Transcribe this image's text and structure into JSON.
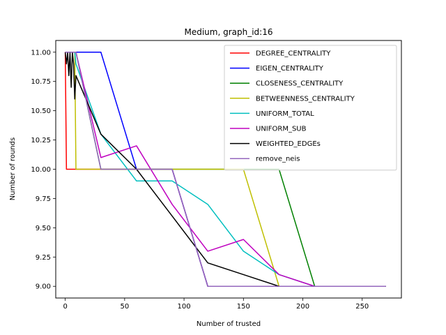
{
  "chart_data": {
    "type": "line",
    "title": "Medium, graph_id:16",
    "xlabel": "Number of trusted",
    "ylabel": "Number of rounds",
    "xlim": [
      -8,
      283
    ],
    "ylim": [
      8.9,
      11.1
    ],
    "xticks": [
      0,
      50,
      100,
      150,
      200,
      250
    ],
    "yticks": [
      9.0,
      9.25,
      9.5,
      9.75,
      10.0,
      10.25,
      10.5,
      10.75,
      11.0
    ],
    "ytick_labels": [
      "9.00",
      "9.25",
      "9.50",
      "9.75",
      "10.00",
      "10.25",
      "10.50",
      "10.75",
      "11.00"
    ],
    "grid": false,
    "legend_position": "upper right",
    "series": [
      {
        "name": "DEGREE_CENTRALITY",
        "color": "#ff0000",
        "x": [
          0,
          1,
          2,
          3,
          4,
          5,
          6,
          7,
          8,
          9,
          30,
          60,
          90,
          120,
          150,
          180,
          210,
          240,
          270
        ],
        "y": [
          11,
          10,
          10,
          10,
          10,
          10,
          10,
          10,
          10,
          10,
          10,
          10,
          10,
          9,
          9,
          9,
          9,
          9,
          9
        ]
      },
      {
        "name": "EIGEN_CENTRALITY",
        "color": "#0000ff",
        "x": [
          0,
          1,
          2,
          3,
          4,
          5,
          6,
          7,
          8,
          9,
          30,
          60,
          90,
          120,
          150,
          180,
          210,
          240,
          270
        ],
        "y": [
          11,
          11,
          11,
          11,
          11,
          11,
          11,
          11,
          11,
          11,
          11,
          10,
          10,
          9,
          9,
          9,
          9,
          9,
          9
        ]
      },
      {
        "name": "CLOSENESS_CENTRALITY",
        "color": "#008000",
        "x": [
          0,
          1,
          2,
          3,
          4,
          5,
          6,
          7,
          8,
          9,
          30,
          60,
          90,
          120,
          150,
          180,
          210,
          240,
          270
        ],
        "y": [
          11,
          11,
          11,
          11,
          11,
          11,
          11,
          11,
          11,
          11,
          10,
          10,
          10,
          10,
          10,
          10,
          9,
          9,
          9
        ]
      },
      {
        "name": "BETWEENNESS_CENTRALITY",
        "color": "#bfbf00",
        "x": [
          0,
          1,
          2,
          3,
          4,
          5,
          6,
          7,
          8,
          9,
          30,
          60,
          90,
          120,
          150,
          180,
          210,
          240,
          270
        ],
        "y": [
          11,
          11,
          11,
          11,
          11,
          11,
          11,
          11,
          11,
          10,
          10,
          10,
          10,
          10,
          10,
          9,
          9,
          9,
          9
        ]
      },
      {
        "name": "UNIFORM_TOTAL",
        "color": "#00bfbf",
        "x": [
          0,
          1,
          2,
          3,
          4,
          5,
          6,
          7,
          8,
          9,
          30,
          60,
          90,
          120,
          150,
          180,
          210,
          240,
          270
        ],
        "y": [
          11,
          11,
          11,
          11,
          11,
          11,
          11,
          11,
          11,
          10.9,
          10.3,
          9.9,
          9.9,
          9.7,
          9.3,
          9.1,
          9,
          9,
          9
        ]
      },
      {
        "name": "UNIFORM_SUB",
        "color": "#bf00bf",
        "x": [
          0,
          1,
          2,
          3,
          4,
          5,
          6,
          7,
          8,
          9,
          30,
          60,
          90,
          120,
          150,
          180,
          210,
          240,
          270
        ],
        "y": [
          11,
          11,
          11,
          11,
          11,
          11,
          11,
          11,
          11,
          11,
          10.1,
          10.2,
          9.7,
          9.3,
          9.4,
          9.1,
          9,
          9,
          9
        ]
      },
      {
        "name": "WEIGHTED_EDGEs",
        "color": "#000000",
        "x": [
          0,
          1,
          2,
          3,
          4,
          5,
          6,
          7,
          8,
          9,
          30,
          60,
          90,
          120,
          150,
          180,
          210,
          240,
          270
        ],
        "y": [
          11,
          10.9,
          11,
          10.8,
          11,
          10.7,
          11,
          10.9,
          10.6,
          10.8,
          10.3,
          10,
          9.6,
          9.2,
          9.1,
          9,
          9,
          9,
          9
        ]
      },
      {
        "name": "remove_neis",
        "color": "#9467bd",
        "x": [
          0,
          1,
          2,
          3,
          4,
          5,
          6,
          7,
          8,
          9,
          30,
          60,
          90,
          120,
          150,
          180,
          210,
          240,
          270
        ],
        "y": [
          11,
          11,
          11,
          11,
          11,
          11,
          11,
          11,
          11,
          11,
          10,
          10,
          10,
          9,
          9,
          9,
          9,
          9,
          9
        ]
      }
    ]
  }
}
